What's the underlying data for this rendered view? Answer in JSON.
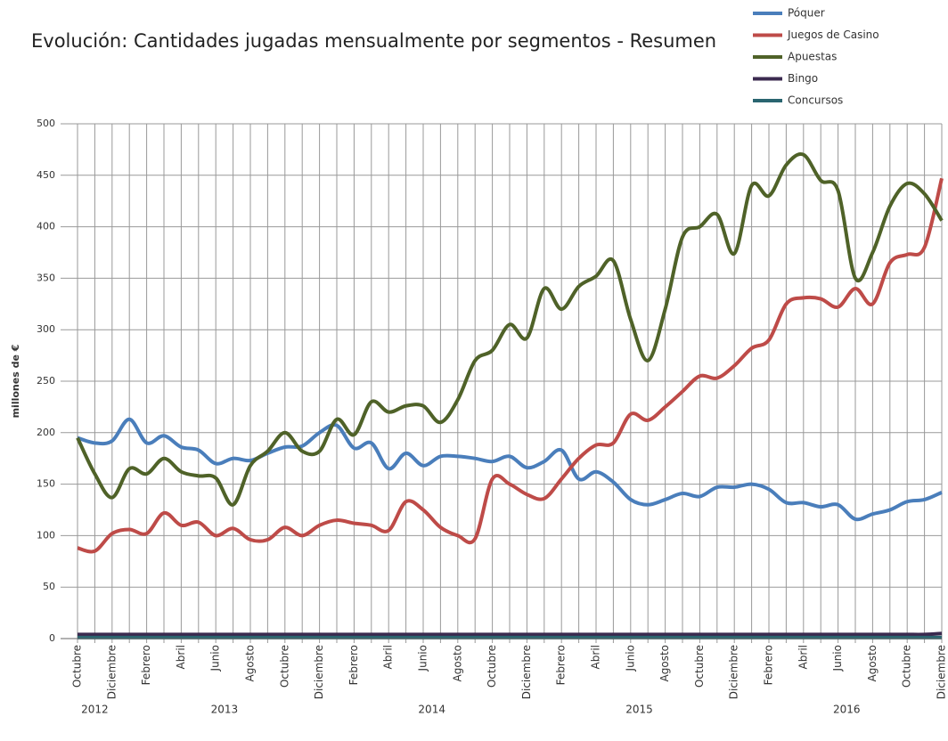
{
  "chart_data": {
    "type": "line",
    "title": "Evolución: Cantidades jugadas mensualmente por segmentos - Resumen",
    "ylabel": "millones de €",
    "categories": [
      "Octubre",
      null,
      "Diciembre",
      null,
      "Febrero",
      null,
      "Abril",
      null,
      "Junio",
      null,
      "Agosto",
      null,
      "Octubre",
      null,
      "Diciembre",
      null,
      "Febrero",
      null,
      "Abril",
      null,
      "Junio",
      null,
      "Agosto",
      null,
      "Octubre",
      null,
      "Diciembre",
      null,
      "Febrero",
      null,
      "Abril",
      null,
      "Junio",
      null,
      "Agosto",
      null,
      "Octubre",
      null,
      "Diciembre",
      null,
      "Febrero",
      null,
      "Abril",
      null,
      "Junio",
      null,
      "Agosto",
      null,
      "Octubre",
      null,
      "Diciembre"
    ],
    "year_labels": [
      "2012",
      "2013",
      "2014",
      "2015",
      "2016"
    ],
    "ylim": [
      0,
      500
    ],
    "yticks": [
      0,
      50,
      100,
      150,
      200,
      250,
      300,
      350,
      400,
      450,
      500
    ],
    "grid": true,
    "legend": "top-right",
    "series": [
      {
        "name": "Póquer",
        "color": "#4a7ebb",
        "values": [
          195,
          190,
          192,
          213,
          190,
          197,
          186,
          183,
          170,
          175,
          173,
          180,
          186,
          187,
          200,
          207,
          185,
          190,
          165,
          180,
          168,
          177,
          177,
          175,
          172,
          177,
          166,
          172,
          183,
          155,
          162,
          152,
          135,
          130,
          135,
          141,
          138,
          147,
          147,
          150,
          145,
          132,
          132,
          128,
          130,
          116,
          121,
          125,
          133,
          135,
          142
        ]
      },
      {
        "name": "Juegos de Casino",
        "color": "#be4b48",
        "values": [
          88,
          85,
          102,
          106,
          102,
          122,
          110,
          113,
          100,
          107,
          96,
          96,
          108,
          100,
          110,
          115,
          112,
          110,
          105,
          133,
          125,
          108,
          100,
          97,
          155,
          150,
          140,
          136,
          155,
          175,
          188,
          190,
          218,
          212,
          225,
          240,
          255,
          253,
          265,
          282,
          290,
          325,
          331,
          330,
          322,
          340,
          325,
          365,
          373,
          380,
          447
        ]
      },
      {
        "name": "Apuestas",
        "color": "#4f6228",
        "values": [
          195,
          160,
          137,
          165,
          160,
          175,
          162,
          158,
          156,
          130,
          168,
          182,
          200,
          182,
          182,
          213,
          198,
          230,
          220,
          226,
          226,
          210,
          232,
          270,
          280,
          305,
          292,
          340,
          320,
          342,
          352,
          367,
          310,
          270,
          320,
          390,
          400,
          412,
          374,
          440,
          430,
          460,
          470,
          445,
          435,
          350,
          375,
          420,
          442,
          432,
          406
        ]
      },
      {
        "name": "Bingo",
        "color": "#3b2a4f",
        "values": [
          4,
          4,
          4,
          4,
          4,
          4,
          4,
          4,
          4,
          4,
          4,
          4,
          4,
          4,
          4,
          4,
          4,
          4,
          4,
          4,
          4,
          4,
          4,
          4,
          4,
          4,
          4,
          4,
          4,
          4,
          4,
          4,
          4,
          4,
          4,
          4,
          4,
          4,
          4,
          4,
          4,
          4,
          4,
          4,
          4,
          4,
          4,
          4,
          4,
          4,
          5
        ]
      },
      {
        "name": "Concursos",
        "color": "#2a6570",
        "values": [
          1,
          1,
          1,
          1,
          1,
          1,
          1,
          1,
          1,
          1,
          1,
          1,
          1,
          1,
          1,
          1,
          1,
          1,
          1,
          1,
          1,
          1,
          1,
          1,
          1,
          1,
          1,
          1,
          1,
          1,
          1,
          1,
          1,
          1,
          1,
          1,
          1,
          1,
          1,
          1,
          1,
          1,
          1,
          1,
          1,
          1,
          1,
          1,
          1,
          1,
          1
        ]
      }
    ]
  }
}
